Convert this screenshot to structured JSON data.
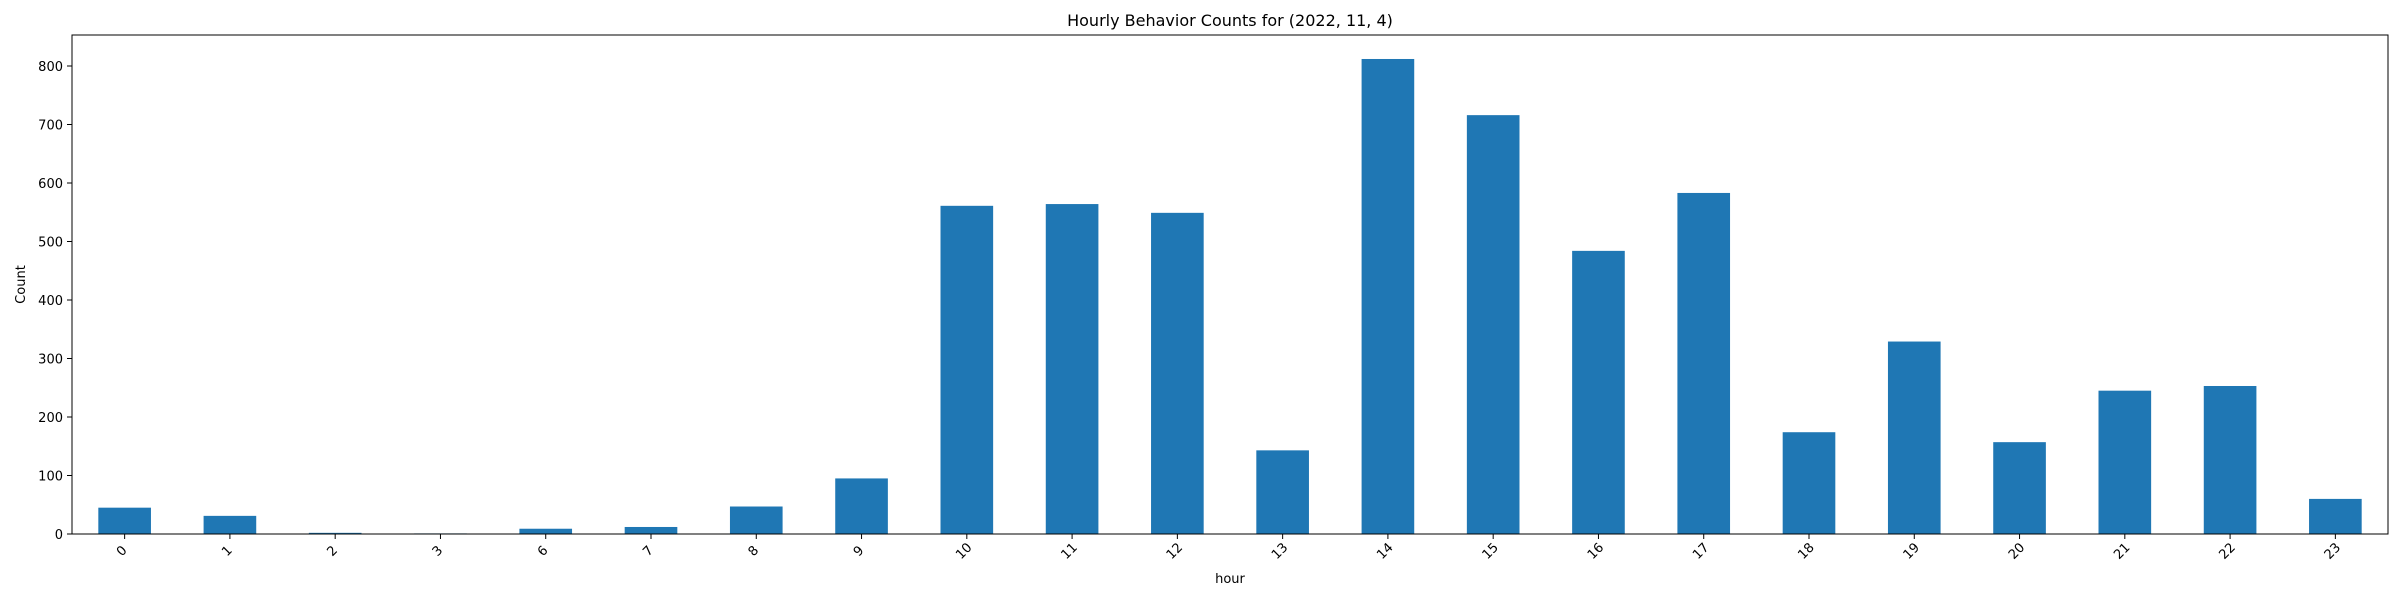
{
  "chart_data": {
    "type": "bar",
    "title": "Hourly Behavior Counts for (2022, 11, 4)",
    "xlabel": "hour",
    "ylabel": "Count",
    "categories": [
      "0",
      "1",
      "2",
      "3",
      "6",
      "7",
      "8",
      "9",
      "10",
      "11",
      "12",
      "13",
      "14",
      "15",
      "16",
      "17",
      "18",
      "19",
      "20",
      "21",
      "22",
      "23"
    ],
    "values": [
      45,
      31,
      2,
      1,
      9,
      12,
      47,
      95,
      561,
      564,
      549,
      143,
      812,
      716,
      484,
      583,
      174,
      329,
      157,
      245,
      253,
      60
    ],
    "ylim": [
      0,
      853
    ],
    "yticks": [
      0,
      100,
      200,
      300,
      400,
      500,
      600,
      700,
      800
    ],
    "grid": false,
    "bar_color": "#1f77b4"
  }
}
